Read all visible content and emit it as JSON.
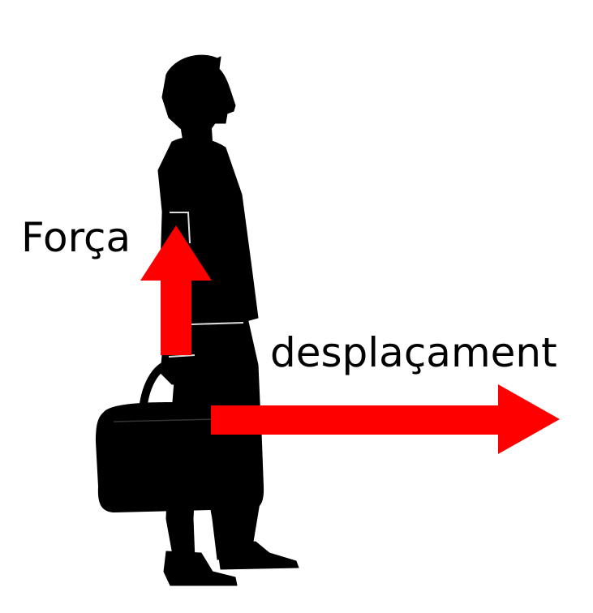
{
  "labels": {
    "force": "Força",
    "displacement": "desplaçament"
  },
  "figure": {
    "subject": "person-silhouette",
    "carried_object": "bag-icon",
    "arrows": [
      {
        "name": "force-arrow",
        "direction": "up",
        "color": "#ff0000"
      },
      {
        "name": "displacement-arrow",
        "direction": "right",
        "color": "#ff0000"
      }
    ],
    "silhouette_color": "#000000",
    "background_color": "#ffffff"
  }
}
